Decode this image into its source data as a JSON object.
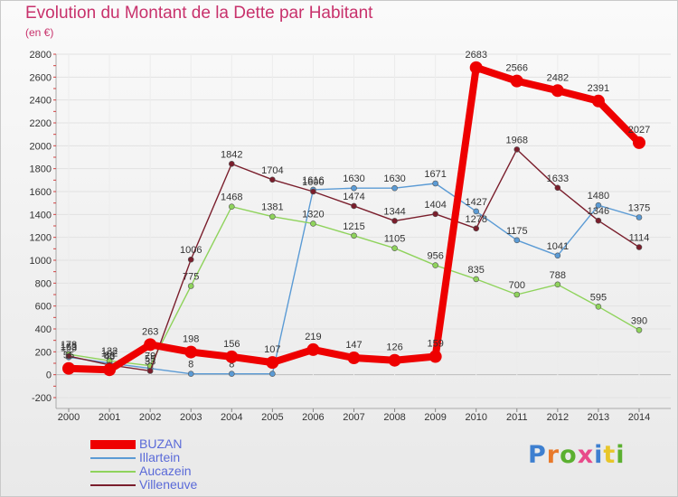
{
  "title": "Evolution du Montant de la Dette par Habitant",
  "subtitle": "(en €)",
  "logo": {
    "text": "Proxiti",
    "colors": [
      "#3d7fd0",
      "#e8792a",
      "#5bb030",
      "#e84a8a",
      "#3d7fd0",
      "#e8c62a",
      "#5bb030"
    ]
  },
  "chart_data": {
    "type": "line",
    "title": "Evolution du Montant de la Dette par Habitant",
    "ylabel": "(en €)",
    "x": [
      "2000",
      "2001",
      "2002",
      "2003",
      "2004",
      "2005",
      "2006",
      "2007",
      "2008",
      "2009",
      "2010",
      "2011",
      "2012",
      "2013",
      "2014"
    ],
    "ylim": [
      -200,
      2800
    ],
    "yticks": [
      -200,
      0,
      200,
      400,
      600,
      800,
      1000,
      1200,
      1400,
      1600,
      1800,
      2000,
      2200,
      2400,
      2600,
      2800
    ],
    "grid": true,
    "legend": "bottom-left",
    "series": [
      {
        "name": "BUZAN",
        "color": "#ee0000",
        "values": [
          55,
          43,
          263,
          198,
          156,
          107,
          219,
          147,
          126,
          159,
          2683,
          2566,
          2482,
          2391,
          2027
        ]
      },
      {
        "name": "Illartein",
        "color": "#5b9bd5",
        "values": [
          153,
          102,
          55,
          8,
          8,
          8,
          1616,
          1630,
          1630,
          1671,
          1427,
          1175,
          1041,
          1480,
          1375
        ]
      },
      {
        "name": "Aucazein",
        "color": "#8fd35c",
        "values": [
          178,
          122,
          79,
          775,
          1468,
          1381,
          1320,
          1215,
          1105,
          956,
          835,
          700,
          788,
          595,
          390
        ]
      },
      {
        "name": "Villeneuve",
        "color": "#7a1e2c",
        "values": [
          163,
          86,
          33,
          1006,
          1842,
          1704,
          1600,
          1474,
          1344,
          1404,
          1278,
          1968,
          1633,
          1346,
          1114
        ]
      }
    ]
  }
}
